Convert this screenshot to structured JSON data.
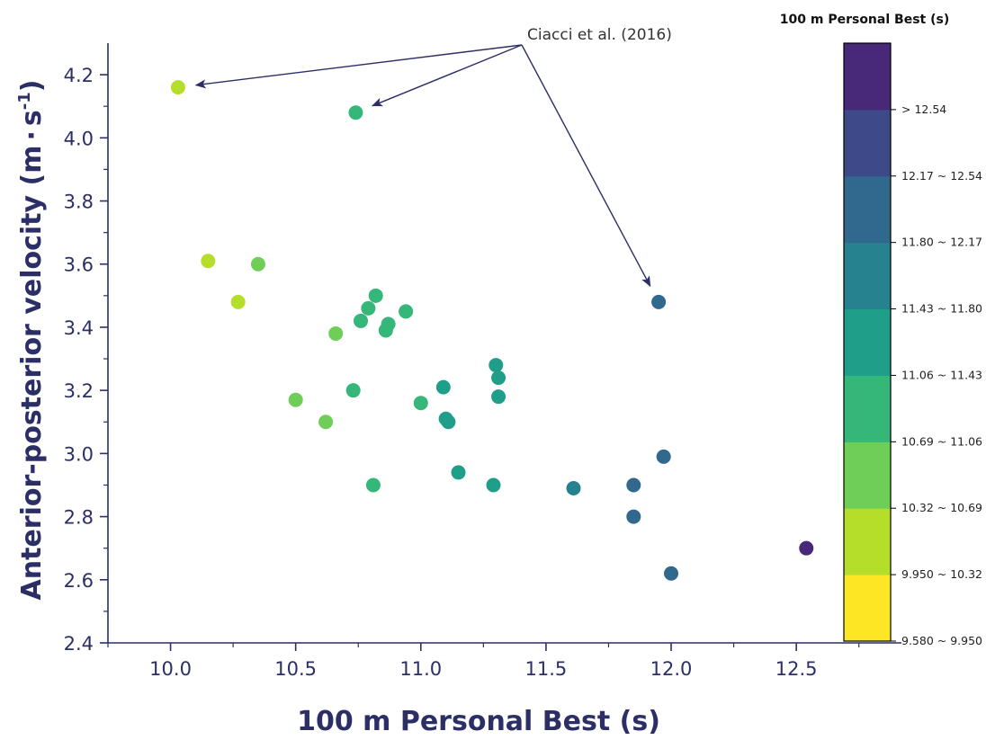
{
  "chart_data": {
    "type": "scatter",
    "xlabel": "100 m Personal Best (s)",
    "ylabel_main": "Anterior-posterior velocity (m",
    "ylabel_unit_dot": "·",
    "ylabel_unit_s": "s",
    "ylabel_sup": "-1",
    "ylabel_close": ")",
    "xlim": [
      9.75,
      12.92
    ],
    "ylim": [
      2.4,
      4.3
    ],
    "xticks": [
      10.0,
      10.5,
      11.0,
      11.5,
      12.0,
      12.5
    ],
    "xtick_labels": [
      "10.0",
      "10.5",
      "11.0",
      "11.5",
      "12.0",
      "12.5"
    ],
    "yticks": [
      2.4,
      2.6,
      2.8,
      3.0,
      3.2,
      3.4,
      3.6,
      3.8,
      4.0,
      4.2
    ],
    "ytick_labels": [
      "2.4",
      "2.6",
      "2.8",
      "3.0",
      "3.2",
      "3.4",
      "3.6",
      "3.8",
      "4.0",
      "4.2"
    ],
    "grid": false,
    "points": [
      {
        "x": 10.03,
        "y": 4.16
      },
      {
        "x": 10.74,
        "y": 4.08
      },
      {
        "x": 10.15,
        "y": 3.61
      },
      {
        "x": 10.35,
        "y": 3.6
      },
      {
        "x": 10.27,
        "y": 3.48
      },
      {
        "x": 10.82,
        "y": 3.5
      },
      {
        "x": 10.79,
        "y": 3.46
      },
      {
        "x": 10.94,
        "y": 3.45
      },
      {
        "x": 10.76,
        "y": 3.42
      },
      {
        "x": 10.87,
        "y": 3.41
      },
      {
        "x": 10.86,
        "y": 3.39
      },
      {
        "x": 10.66,
        "y": 3.38
      },
      {
        "x": 11.3,
        "y": 3.28
      },
      {
        "x": 11.31,
        "y": 3.24
      },
      {
        "x": 11.09,
        "y": 3.21
      },
      {
        "x": 10.73,
        "y": 3.2
      },
      {
        "x": 11.31,
        "y": 3.18
      },
      {
        "x": 10.5,
        "y": 3.17
      },
      {
        "x": 11.0,
        "y": 3.16
      },
      {
        "x": 11.1,
        "y": 3.11
      },
      {
        "x": 11.11,
        "y": 3.1
      },
      {
        "x": 10.62,
        "y": 3.1
      },
      {
        "x": 11.97,
        "y": 2.99
      },
      {
        "x": 11.15,
        "y": 2.94
      },
      {
        "x": 10.81,
        "y": 2.9
      },
      {
        "x": 11.29,
        "y": 2.9
      },
      {
        "x": 11.85,
        "y": 2.9
      },
      {
        "x": 11.61,
        "y": 2.89
      },
      {
        "x": 11.85,
        "y": 2.8
      },
      {
        "x": 12.54,
        "y": 2.7
      },
      {
        "x": 12.0,
        "y": 2.62
      },
      {
        "x": 11.95,
        "y": 3.48
      }
    ],
    "annotation": {
      "text": "Ciacci et al. (2016)",
      "targets": [
        {
          "x": 10.03,
          "y": 4.16
        },
        {
          "x": 10.74,
          "y": 4.08
        },
        {
          "x": 11.95,
          "y": 3.48
        }
      ]
    },
    "colorbar": {
      "title": "100 m Personal Best (s)",
      "bins": [
        {
          "label": "9.580 ~ 9.950",
          "color": "#fde725"
        },
        {
          "label": "9.950 ~ 10.32",
          "color": "#b5de2b"
        },
        {
          "label": "10.32 ~ 10.69",
          "color": "#6ece58"
        },
        {
          "label": "10.69 ~ 11.06",
          "color": "#35b779"
        },
        {
          "label": "11.06 ~ 11.43",
          "color": "#1f9e89"
        },
        {
          "label": "11.43 ~ 11.80",
          "color": "#26828e"
        },
        {
          "label": "11.80 ~ 12.17",
          "color": "#31688e"
        },
        {
          "label": "12.17 ~ 12.54",
          "color": "#3e4989"
        },
        {
          "label": "> 12.54",
          "color": "#482878"
        }
      ],
      "tick_labels": [
        "9.580 ~ 9.950",
        "9.950 ~ 10.32",
        "10.32 ~ 10.69",
        "10.69 ~ 11.06",
        "11.06 ~ 11.43",
        "11.43 ~ 11.80",
        "11.80 ~ 12.17",
        "12.17 ~ 12.54",
        "> 12.54"
      ]
    },
    "colors": {
      "axis": "#2b2f66",
      "arrow": "#2b2f66"
    }
  }
}
